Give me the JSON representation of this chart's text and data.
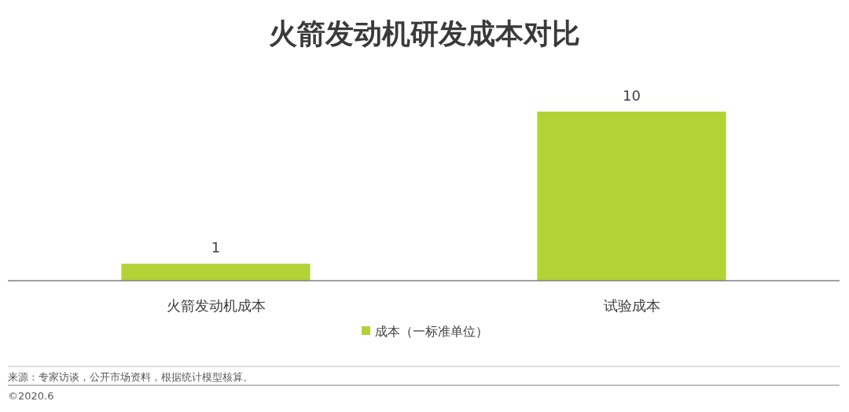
{
  "chart_data": {
    "type": "bar",
    "title": "火箭发动机研发成本对比",
    "categories": [
      "火箭发动机成本",
      "试验成本"
    ],
    "series": [
      {
        "name": "成本（一标准单位）",
        "color": "#b2d235",
        "values": [
          1,
          10
        ]
      }
    ],
    "data_labels": true,
    "legend": "bottom",
    "grid": false,
    "annotations": [
      "来源：专家访谈，公开市场资料，根据统计模型核算。",
      "©2020.6"
    ]
  }
}
